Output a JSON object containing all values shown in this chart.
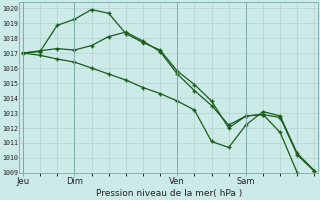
{
  "xlabel": "Pression niveau de la mer( hPa )",
  "ylim": [
    1009,
    1020.4
  ],
  "bg_color": "#cceae7",
  "grid_color": "#b0cccc",
  "line_color": "#1a5c1a",
  "day_labels": [
    "Jeu",
    "Dim",
    "Ven",
    "Sam"
  ],
  "day_positions": [
    0,
    3,
    9,
    13
  ],
  "xlim": [
    -0.2,
    17.2
  ],
  "line1_x": [
    0,
    1,
    2,
    3,
    4,
    5,
    6,
    7,
    8,
    9,
    10,
    11,
    12,
    13,
    14,
    15,
    16
  ],
  "line1_y": [
    1017.0,
    1017.1,
    1018.85,
    1019.25,
    1019.9,
    1019.65,
    1018.3,
    1017.7,
    1017.2,
    1015.8,
    1014.9,
    1013.8,
    1012.0,
    1012.8,
    1012.9,
    1011.7,
    1009.0
  ],
  "line2_x": [
    0,
    1,
    2,
    3,
    4,
    5,
    6,
    7,
    8,
    9,
    10,
    11,
    12,
    13,
    14,
    15,
    16,
    17
  ],
  "line2_y": [
    1017.0,
    1017.15,
    1017.3,
    1017.2,
    1017.5,
    1018.1,
    1018.4,
    1017.8,
    1017.1,
    1015.6,
    1014.5,
    1013.5,
    1012.2,
    1012.8,
    1012.9,
    1012.7,
    1010.2,
    1009.1
  ],
  "line3_x": [
    0,
    1,
    2,
    3,
    4,
    5,
    6,
    7,
    8,
    9,
    10,
    11,
    12,
    13,
    14,
    15,
    16,
    17
  ],
  "line3_y": [
    1017.0,
    1016.85,
    1016.6,
    1016.4,
    1016.0,
    1015.6,
    1015.2,
    1014.7,
    1014.3,
    1013.8,
    1013.2,
    1011.1,
    1010.7,
    1012.2,
    1013.1,
    1012.8,
    1010.3,
    1009.15
  ]
}
